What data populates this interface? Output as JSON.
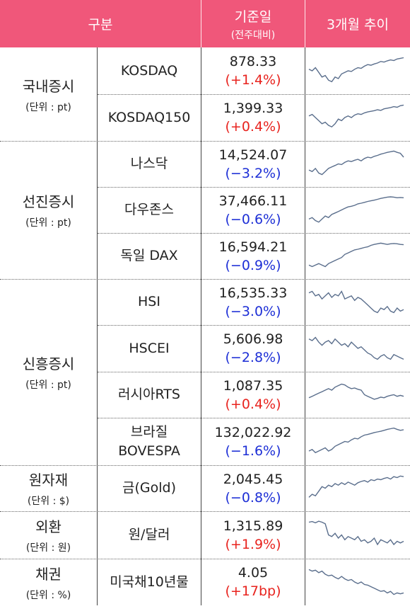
{
  "header": {
    "category": "구분",
    "value_title": "기준일",
    "value_sub": "(전주대비)",
    "trend": "3개월 추이"
  },
  "colors": {
    "header_bg": "#f0577a",
    "up": "#e8231e",
    "down": "#1d2fd6",
    "sparkline": "#5a6e8c"
  },
  "groups": [
    {
      "name": "국내증시",
      "unit": "(단위 : pt)"
    },
    {
      "name": "선진증시",
      "unit": "(단위 : pt)"
    },
    {
      "name": "신흥증시",
      "unit": "(단위 : pt)"
    },
    {
      "name": "원자재",
      "unit": "(단위 : $)"
    },
    {
      "name": "외환",
      "unit": "(단위 : 원)"
    },
    {
      "name": "채권",
      "unit": "(단위 : %)"
    }
  ],
  "rows": [
    {
      "name": "KOSDAQ",
      "name2": "",
      "value": "878.33",
      "change": "(+1.4%)",
      "dir": "up"
    },
    {
      "name": "KOSDAQ150",
      "name2": "",
      "value": "1,399.33",
      "change": "(+0.4%)",
      "dir": "up"
    },
    {
      "name": "나스닥",
      "name2": "",
      "value": "14,524.07",
      "change": "(−3.2%)",
      "dir": "down"
    },
    {
      "name": "다우존스",
      "name2": "",
      "value": "37,466.11",
      "change": "(−0.6%)",
      "dir": "down"
    },
    {
      "name": "독일 DAX",
      "name2": "",
      "value": "16,594.21",
      "change": "(−0.9%)",
      "dir": "down"
    },
    {
      "name": "HSI",
      "name2": "",
      "value": "16,535.33",
      "change": "(−3.0%)",
      "dir": "down"
    },
    {
      "name": "HSCEI",
      "name2": "",
      "value": "5,606.98",
      "change": "(−2.8%)",
      "dir": "down"
    },
    {
      "name": "러시아RTS",
      "name2": "",
      "value": "1,087.35",
      "change": "(+0.4%)",
      "dir": "up"
    },
    {
      "name": "브라질",
      "name2": "BOVESPA",
      "value": "132,022.92",
      "change": "(−1.6%)",
      "dir": "down"
    },
    {
      "name": "금(Gold)",
      "name2": "",
      "value": "2,045.45",
      "change": "(−0.8%)",
      "dir": "down"
    },
    {
      "name": "원/달러",
      "name2": "",
      "value": "1,315.89",
      "change": "(+1.9%)",
      "dir": "up"
    },
    {
      "name": "미국채10년물",
      "name2": "",
      "value": "4.05",
      "change": "(+17bp)",
      "dir": "up"
    }
  ],
  "sparklines": [
    [
      0.55,
      0.5,
      0.6,
      0.45,
      0.3,
      0.35,
      0.2,
      0.15,
      0.3,
      0.25,
      0.4,
      0.45,
      0.5,
      0.48,
      0.55,
      0.6,
      0.58,
      0.65,
      0.7,
      0.68,
      0.72,
      0.75,
      0.8,
      0.78,
      0.82,
      0.85,
      0.83,
      0.88,
      0.9,
      0.92
    ],
    [
      0.55,
      0.6,
      0.5,
      0.4,
      0.3,
      0.35,
      0.25,
      0.2,
      0.3,
      0.45,
      0.4,
      0.5,
      0.55,
      0.5,
      0.58,
      0.62,
      0.6,
      0.65,
      0.68,
      0.7,
      0.72,
      0.75,
      0.73,
      0.78,
      0.8,
      0.82,
      0.85,
      0.83,
      0.88,
      0.9
    ],
    [
      0.3,
      0.25,
      0.35,
      0.2,
      0.15,
      0.25,
      0.35,
      0.4,
      0.45,
      0.5,
      0.48,
      0.55,
      0.6,
      0.58,
      0.62,
      0.65,
      0.6,
      0.68,
      0.72,
      0.7,
      0.75,
      0.78,
      0.82,
      0.85,
      0.88,
      0.9,
      0.92,
      0.88,
      0.85,
      0.72
    ],
    [
      0.2,
      0.25,
      0.15,
      0.1,
      0.2,
      0.3,
      0.25,
      0.35,
      0.4,
      0.45,
      0.5,
      0.55,
      0.6,
      0.62,
      0.65,
      0.7,
      0.72,
      0.75,
      0.78,
      0.8,
      0.82,
      0.85,
      0.88,
      0.9,
      0.92,
      0.93,
      0.92,
      0.9,
      0.91,
      0.9
    ],
    [
      0.2,
      0.15,
      0.2,
      0.25,
      0.2,
      0.15,
      0.25,
      0.3,
      0.35,
      0.4,
      0.45,
      0.55,
      0.6,
      0.65,
      0.7,
      0.72,
      0.75,
      0.78,
      0.8,
      0.85,
      0.88,
      0.9,
      0.92,
      0.9,
      0.88,
      0.9,
      0.91,
      0.9,
      0.88,
      0.87
    ],
    [
      0.8,
      0.85,
      0.7,
      0.75,
      0.6,
      0.7,
      0.8,
      0.65,
      0.75,
      0.7,
      0.85,
      0.6,
      0.65,
      0.7,
      0.55,
      0.65,
      0.6,
      0.5,
      0.4,
      0.3,
      0.2,
      0.15,
      0.3,
      0.25,
      0.35,
      0.2,
      0.15,
      0.3,
      0.2,
      0.25
    ],
    [
      0.8,
      0.75,
      0.85,
      0.7,
      0.6,
      0.7,
      0.75,
      0.65,
      0.8,
      0.7,
      0.6,
      0.65,
      0.55,
      0.7,
      0.6,
      0.5,
      0.55,
      0.45,
      0.35,
      0.3,
      0.2,
      0.15,
      0.25,
      0.3,
      0.2,
      0.15,
      0.3,
      0.25,
      0.2,
      0.15
    ],
    [
      0.4,
      0.45,
      0.5,
      0.55,
      0.6,
      0.65,
      0.7,
      0.65,
      0.75,
      0.8,
      0.85,
      0.82,
      0.75,
      0.7,
      0.72,
      0.68,
      0.65,
      0.5,
      0.45,
      0.4,
      0.35,
      0.38,
      0.42,
      0.4,
      0.45,
      0.48,
      0.5,
      0.45,
      0.48,
      0.45
    ],
    [
      0.2,
      0.25,
      0.15,
      0.2,
      0.25,
      0.3,
      0.2,
      0.25,
      0.35,
      0.4,
      0.45,
      0.5,
      0.48,
      0.55,
      0.6,
      0.58,
      0.65,
      0.7,
      0.72,
      0.75,
      0.78,
      0.8,
      0.82,
      0.85,
      0.88,
      0.9,
      0.92,
      0.88,
      0.85,
      0.87
    ],
    [
      0.2,
      0.3,
      0.25,
      0.4,
      0.55,
      0.5,
      0.6,
      0.55,
      0.65,
      0.6,
      0.68,
      0.62,
      0.7,
      0.65,
      0.6,
      0.68,
      0.72,
      0.75,
      0.7,
      0.78,
      0.75,
      0.8,
      0.78,
      0.82,
      0.85,
      0.8,
      0.88,
      0.85,
      0.9,
      0.88
    ],
    [
      0.9,
      0.92,
      0.88,
      0.93,
      0.9,
      0.85,
      0.5,
      0.45,
      0.55,
      0.4,
      0.5,
      0.35,
      0.45,
      0.4,
      0.35,
      0.45,
      0.3,
      0.35,
      0.25,
      0.3,
      0.4,
      0.2,
      0.35,
      0.3,
      0.25,
      0.35,
      0.2,
      0.3,
      0.25,
      0.3
    ],
    [
      0.9,
      0.85,
      0.88,
      0.8,
      0.85,
      0.75,
      0.7,
      0.72,
      0.65,
      0.6,
      0.68,
      0.6,
      0.55,
      0.58,
      0.5,
      0.45,
      0.5,
      0.42,
      0.4,
      0.35,
      0.3,
      0.25,
      0.2,
      0.22,
      0.15,
      0.2,
      0.1,
      0.15,
      0.12,
      0.15
    ]
  ]
}
